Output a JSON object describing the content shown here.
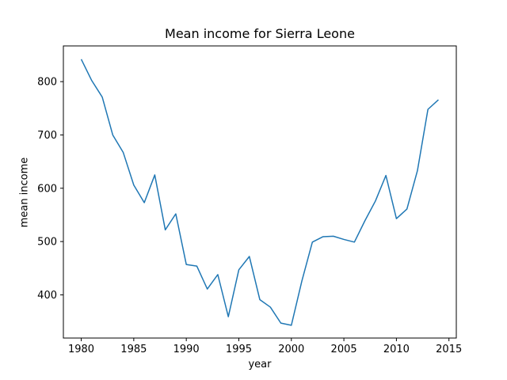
{
  "chart_data": {
    "type": "line",
    "title": "Mean income for Sierra Leone",
    "xlabel": "year",
    "ylabel": "mean income",
    "xlim": [
      1978.3,
      2015.7
    ],
    "ylim": [
      319,
      867
    ],
    "xticks": [
      1980,
      1985,
      1990,
      1995,
      2000,
      2005,
      2010,
      2015
    ],
    "yticks": [
      400,
      500,
      600,
      700,
      800
    ],
    "grid": false,
    "line_color": "#1f77b4",
    "series": [
      {
        "x": [
          1980,
          1981,
          1982,
          1983,
          1984,
          1985,
          1986,
          1987,
          1988,
          1989,
          1990,
          1991,
          1992,
          1993,
          1994,
          1995,
          1996,
          1997,
          1998,
          1999,
          2000,
          2001,
          2002,
          2003,
          2004,
          2005,
          2006,
          2007,
          2008,
          2009,
          2010,
          2011,
          2012,
          2013,
          2014
        ],
        "values": [
          842,
          802,
          771,
          700,
          667,
          606,
          573,
          625,
          522,
          552,
          457,
          454,
          411,
          438,
          359,
          447,
          472,
          391,
          377,
          347,
          343,
          426,
          499,
          509,
          510,
          504,
          499,
          539,
          576,
          624,
          543,
          561,
          633,
          748,
          766
        ]
      }
    ]
  }
}
